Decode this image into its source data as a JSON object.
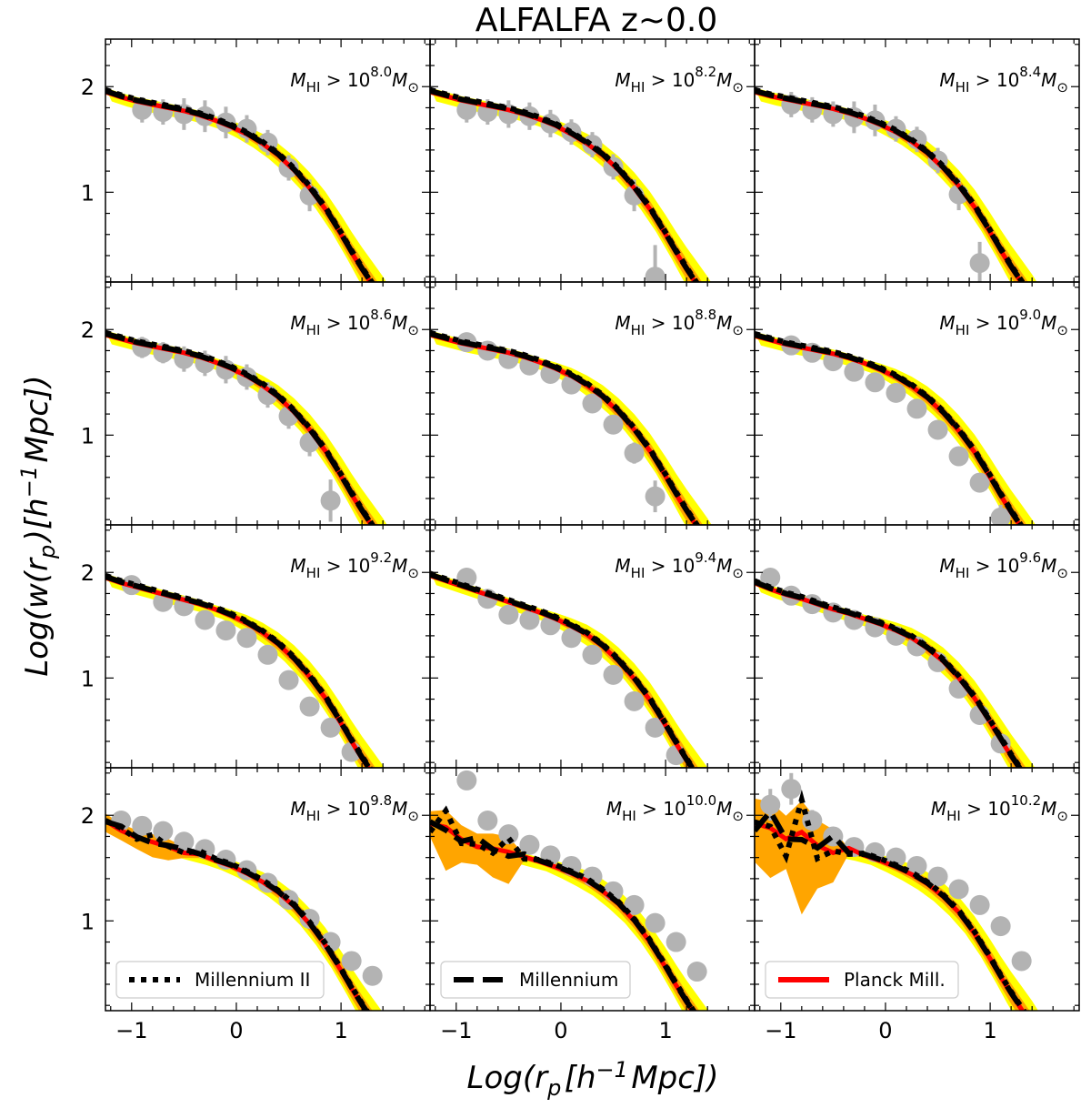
{
  "figure": {
    "title": "ALFALFA z~0.0",
    "xlabel": "Log(r_p[h^{-1}Mpc])",
    "ylabel": "Log(w(r_p)[h^{-1}Mpc])"
  },
  "colors": {
    "millennium_ii": "#000000",
    "millennium": "#000000",
    "planck_mill": "#ff0000",
    "band_outer": "#ffff00",
    "band_inner": "#ffa500",
    "observations": "#b3b3b3"
  },
  "legend": [
    {
      "label": "Millennium II",
      "style": "dotted",
      "panel": 9
    },
    {
      "label": "Millennium",
      "style": "dashed",
      "panel": 10
    },
    {
      "label": "Planck Mill.",
      "style": "solid-red",
      "panel": 11
    }
  ],
  "chart_data": {
    "type": "line",
    "layout": "4x3 grid, shared axes",
    "xlim": [
      -1.25,
      1.85
    ],
    "ylim": [
      0.15,
      2.45
    ],
    "x_ticks": [
      -1,
      0,
      1
    ],
    "x_tick_labels": [
      "−1",
      "0",
      "1"
    ],
    "y_ticks": [
      1,
      2
    ],
    "y_tick_labels": [
      "1",
      "2"
    ],
    "series_names": [
      "Millennium II",
      "Millennium",
      "Planck Mill."
    ],
    "model_x": [
      -1.25,
      -1.1,
      -0.95,
      -0.8,
      -0.65,
      -0.5,
      -0.35,
      -0.2,
      -0.05,
      0.1,
      0.25,
      0.4,
      0.55,
      0.7,
      0.85,
      1.0,
      1.1,
      1.2,
      1.3,
      1.4,
      1.5
    ],
    "panels": [
      {
        "label_mantissa": "10",
        "label_exp": "8.0",
        "model_y": [
          1.95,
          1.9,
          1.86,
          1.83,
          1.8,
          1.77,
          1.73,
          1.68,
          1.62,
          1.55,
          1.46,
          1.35,
          1.21,
          1.04,
          0.84,
          0.6,
          0.43,
          0.27,
          0.12,
          -0.03,
          -0.2
        ],
        "obs": [
          [
            -0.9,
            1.78
          ],
          [
            -0.7,
            1.76
          ],
          [
            -0.5,
            1.74
          ],
          [
            -0.3,
            1.72
          ],
          [
            -0.1,
            1.66
          ],
          [
            0.1,
            1.6
          ],
          [
            0.3,
            1.47
          ],
          [
            0.5,
            1.23
          ],
          [
            0.7,
            0.97
          ]
        ],
        "obs_err": [
          0.12,
          0.12,
          0.15,
          0.15,
          0.15,
          0.13,
          0.12,
          0.12,
          0.15
        ]
      },
      {
        "label_mantissa": "10",
        "label_exp": "8.2",
        "model_y": [
          1.95,
          1.91,
          1.87,
          1.84,
          1.81,
          1.78,
          1.74,
          1.69,
          1.63,
          1.55,
          1.46,
          1.35,
          1.21,
          1.04,
          0.84,
          0.6,
          0.43,
          0.27,
          0.12,
          -0.03,
          -0.2
        ],
        "obs": [
          [
            -0.9,
            1.78
          ],
          [
            -0.7,
            1.76
          ],
          [
            -0.5,
            1.74
          ],
          [
            -0.3,
            1.72
          ],
          [
            -0.1,
            1.65
          ],
          [
            0.1,
            1.57
          ],
          [
            0.3,
            1.45
          ],
          [
            0.5,
            1.24
          ],
          [
            0.7,
            0.97
          ],
          [
            0.9,
            0.2
          ]
        ],
        "obs_err": [
          0.12,
          0.12,
          0.13,
          0.13,
          0.13,
          0.12,
          0.12,
          0.12,
          0.15,
          0.3
        ]
      },
      {
        "label_mantissa": "10",
        "label_exp": "8.4",
        "model_y": [
          1.95,
          1.91,
          1.88,
          1.85,
          1.82,
          1.79,
          1.75,
          1.7,
          1.64,
          1.57,
          1.48,
          1.37,
          1.23,
          1.06,
          0.86,
          0.62,
          0.45,
          0.29,
          0.14,
          -0.01,
          -0.18
        ],
        "obs": [
          [
            -0.9,
            1.83
          ],
          [
            -0.7,
            1.78
          ],
          [
            -0.5,
            1.74
          ],
          [
            -0.3,
            1.71
          ],
          [
            -0.1,
            1.68
          ],
          [
            0.1,
            1.6
          ],
          [
            0.3,
            1.5
          ],
          [
            0.5,
            1.3
          ],
          [
            0.7,
            0.98
          ],
          [
            0.9,
            0.33
          ]
        ],
        "obs_err": [
          0.12,
          0.12,
          0.12,
          0.15,
          0.15,
          0.12,
          0.12,
          0.12,
          0.15,
          0.2
        ]
      },
      {
        "label_mantissa": "10",
        "label_exp": "8.6",
        "model_y": [
          1.95,
          1.91,
          1.87,
          1.84,
          1.81,
          1.78,
          1.74,
          1.69,
          1.63,
          1.56,
          1.47,
          1.36,
          1.22,
          1.05,
          0.85,
          0.61,
          0.44,
          0.28,
          0.13,
          -0.02,
          -0.19
        ],
        "obs": [
          [
            -0.9,
            1.83
          ],
          [
            -0.7,
            1.78
          ],
          [
            -0.5,
            1.72
          ],
          [
            -0.3,
            1.68
          ],
          [
            -0.1,
            1.62
          ],
          [
            0.1,
            1.55
          ],
          [
            0.3,
            1.38
          ],
          [
            0.5,
            1.18
          ],
          [
            0.7,
            0.93
          ],
          [
            0.9,
            0.38
          ]
        ],
        "obs_err": [
          0.1,
          0.1,
          0.12,
          0.12,
          0.13,
          0.12,
          0.12,
          0.12,
          0.13,
          0.2
        ]
      },
      {
        "label_mantissa": "10",
        "label_exp": "8.8",
        "model_y": [
          1.95,
          1.91,
          1.87,
          1.84,
          1.81,
          1.78,
          1.74,
          1.69,
          1.63,
          1.56,
          1.47,
          1.36,
          1.22,
          1.05,
          0.85,
          0.61,
          0.44,
          0.28,
          0.13,
          -0.02,
          -0.19
        ],
        "obs": [
          [
            -0.9,
            1.88
          ],
          [
            -0.7,
            1.8
          ],
          [
            -0.5,
            1.72
          ],
          [
            -0.3,
            1.66
          ],
          [
            -0.1,
            1.58
          ],
          [
            0.1,
            1.48
          ],
          [
            0.3,
            1.3
          ],
          [
            0.5,
            1.1
          ],
          [
            0.7,
            0.83
          ],
          [
            0.9,
            0.42
          ]
        ],
        "obs_err": [
          0.08,
          0.08,
          0.08,
          0.08,
          0.08,
          0.08,
          0.08,
          0.08,
          0.1,
          0.15
        ]
      },
      {
        "label_mantissa": "10",
        "label_exp": "9.0",
        "model_y": [
          1.94,
          1.9,
          1.86,
          1.83,
          1.8,
          1.77,
          1.73,
          1.68,
          1.62,
          1.55,
          1.46,
          1.35,
          1.21,
          1.04,
          0.84,
          0.6,
          0.43,
          0.27,
          0.12,
          -0.03,
          -0.2
        ],
        "obs": [
          [
            -0.9,
            1.85
          ],
          [
            -0.7,
            1.78
          ],
          [
            -0.5,
            1.7
          ],
          [
            -0.3,
            1.6
          ],
          [
            -0.1,
            1.5
          ],
          [
            0.1,
            1.4
          ],
          [
            0.3,
            1.25
          ],
          [
            0.5,
            1.05
          ],
          [
            0.7,
            0.8
          ],
          [
            0.9,
            0.55
          ],
          [
            1.1,
            0.22
          ]
        ],
        "obs_err": [
          0.06,
          0.06,
          0.06,
          0.06,
          0.06,
          0.06,
          0.06,
          0.06,
          0.06,
          0.08,
          0.12
        ]
      },
      {
        "label_mantissa": "10",
        "label_exp": "9.2",
        "model_y": [
          1.95,
          1.9,
          1.86,
          1.82,
          1.78,
          1.74,
          1.7,
          1.65,
          1.59,
          1.52,
          1.43,
          1.32,
          1.18,
          1.01,
          0.81,
          0.57,
          0.4,
          0.24,
          0.09,
          -0.06,
          -0.23
        ],
        "obs": [
          [
            -1.0,
            1.88
          ],
          [
            -0.7,
            1.72
          ],
          [
            -0.5,
            1.68
          ],
          [
            -0.3,
            1.55
          ],
          [
            -0.1,
            1.45
          ],
          [
            0.1,
            1.38
          ],
          [
            0.3,
            1.22
          ],
          [
            0.5,
            0.98
          ],
          [
            0.7,
            0.73
          ],
          [
            0.9,
            0.53
          ],
          [
            1.1,
            0.3
          ]
        ],
        "obs_err": [
          0.05,
          0.05,
          0.05,
          0.05,
          0.05,
          0.05,
          0.05,
          0.05,
          0.05,
          0.06,
          0.08
        ]
      },
      {
        "label_mantissa": "10",
        "label_exp": "9.4",
        "model_y": [
          1.97,
          1.92,
          1.87,
          1.82,
          1.77,
          1.72,
          1.67,
          1.62,
          1.56,
          1.49,
          1.41,
          1.3,
          1.16,
          0.99,
          0.79,
          0.55,
          0.38,
          0.22,
          0.07,
          -0.08,
          -0.25
        ],
        "obs": [
          [
            -0.9,
            1.95
          ],
          [
            -0.7,
            1.75
          ],
          [
            -0.5,
            1.6
          ],
          [
            -0.3,
            1.55
          ],
          [
            -0.1,
            1.5
          ],
          [
            0.1,
            1.38
          ],
          [
            0.3,
            1.22
          ],
          [
            0.5,
            1.03
          ],
          [
            0.7,
            0.78
          ],
          [
            0.9,
            0.53
          ],
          [
            1.1,
            0.27
          ]
        ],
        "obs_err": [
          0.05,
          0.05,
          0.05,
          0.05,
          0.05,
          0.05,
          0.05,
          0.05,
          0.05,
          0.06,
          0.08
        ]
      },
      {
        "label_mantissa": "10",
        "label_exp": "9.6",
        "model_y": [
          1.9,
          1.84,
          1.79,
          1.75,
          1.7,
          1.65,
          1.61,
          1.56,
          1.51,
          1.45,
          1.38,
          1.28,
          1.16,
          1.0,
          0.81,
          0.58,
          0.42,
          0.26,
          0.11,
          -0.04,
          -0.21
        ],
        "obs": [
          [
            -1.1,
            1.95
          ],
          [
            -0.9,
            1.78
          ],
          [
            -0.7,
            1.7
          ],
          [
            -0.5,
            1.62
          ],
          [
            -0.3,
            1.55
          ],
          [
            -0.1,
            1.48
          ],
          [
            0.1,
            1.4
          ],
          [
            0.3,
            1.3
          ],
          [
            0.5,
            1.15
          ],
          [
            0.7,
            0.9
          ],
          [
            0.9,
            0.65
          ],
          [
            1.1,
            0.38
          ]
        ],
        "obs_err": [
          0.05,
          0.05,
          0.05,
          0.05,
          0.05,
          0.05,
          0.05,
          0.05,
          0.05,
          0.05,
          0.06,
          0.08
        ]
      },
      {
        "label_mantissa": "10",
        "label_exp": "9.8",
        "model_y": [
          1.95,
          1.86,
          1.79,
          1.74,
          1.7,
          1.66,
          1.62,
          1.57,
          1.52,
          1.45,
          1.37,
          1.27,
          1.14,
          0.97,
          0.77,
          0.53,
          0.36,
          0.2,
          0.05,
          -0.1,
          -0.27
        ],
        "obs": [
          [
            -1.1,
            1.95
          ],
          [
            -0.9,
            1.9
          ],
          [
            -0.7,
            1.85
          ],
          [
            -0.5,
            1.75
          ],
          [
            -0.3,
            1.68
          ],
          [
            -0.1,
            1.58
          ],
          [
            0.1,
            1.48
          ],
          [
            0.3,
            1.36
          ],
          [
            0.5,
            1.2
          ],
          [
            0.7,
            1.02
          ],
          [
            0.9,
            0.8
          ],
          [
            1.1,
            0.62
          ],
          [
            1.3,
            0.48
          ]
        ],
        "obs_err": [
          0.06,
          0.06,
          0.06,
          0.06,
          0.06,
          0.06,
          0.06,
          0.06,
          0.06,
          0.06,
          0.06,
          0.06,
          0.08
        ]
      },
      {
        "label_mantissa": "10",
        "label_exp": "10.0",
        "model_y": [
          1.95,
          1.85,
          1.78,
          1.72,
          1.68,
          1.64,
          1.6,
          1.56,
          1.51,
          1.45,
          1.38,
          1.28,
          1.16,
          1.0,
          0.8,
          0.56,
          0.39,
          0.23,
          0.08,
          -0.07,
          -0.24
        ],
        "obs": [
          [
            -0.9,
            2.33
          ],
          [
            -0.7,
            1.95
          ],
          [
            -0.5,
            1.82
          ],
          [
            -0.3,
            1.72
          ],
          [
            -0.1,
            1.62
          ],
          [
            0.1,
            1.52
          ],
          [
            0.3,
            1.42
          ],
          [
            0.5,
            1.28
          ],
          [
            0.7,
            1.15
          ],
          [
            0.9,
            0.98
          ],
          [
            1.1,
            0.8
          ],
          [
            1.3,
            0.52
          ]
        ],
        "obs_err": [
          0.08,
          0.08,
          0.08,
          0.06,
          0.06,
          0.06,
          0.06,
          0.06,
          0.06,
          0.06,
          0.06,
          0.08
        ]
      },
      {
        "label_mantissa": "10",
        "label_exp": "10.2",
        "model_y": [
          1.95,
          1.88,
          1.82,
          1.77,
          1.73,
          1.69,
          1.66,
          1.62,
          1.57,
          1.51,
          1.44,
          1.35,
          1.23,
          1.08,
          0.88,
          0.64,
          0.47,
          0.31,
          0.16,
          0.01,
          -0.16
        ],
        "obs": [
          [
            -1.1,
            2.1
          ],
          [
            -0.9,
            2.25
          ],
          [
            -0.7,
            1.95
          ],
          [
            -0.5,
            1.8
          ],
          [
            -0.3,
            1.7
          ],
          [
            -0.1,
            1.65
          ],
          [
            0.1,
            1.6
          ],
          [
            0.3,
            1.52
          ],
          [
            0.5,
            1.42
          ],
          [
            0.7,
            1.3
          ],
          [
            0.9,
            1.15
          ],
          [
            1.1,
            0.95
          ],
          [
            1.3,
            0.62
          ]
        ],
        "obs_err": [
          0.15,
          0.15,
          0.1,
          0.08,
          0.06,
          0.06,
          0.06,
          0.06,
          0.06,
          0.06,
          0.06,
          0.06,
          0.08
        ]
      }
    ]
  }
}
